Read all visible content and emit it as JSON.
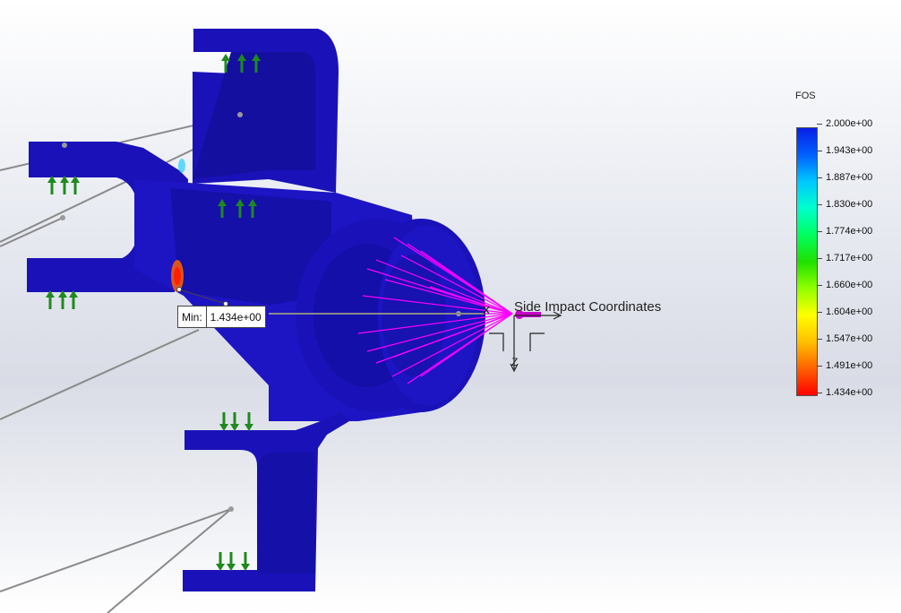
{
  "legend": {
    "title": "FOS",
    "labels": [
      "2.000e+00",
      "1.943e+00",
      "1.887e+00",
      "1.830e+00",
      "1.774e+00",
      "1.717e+00",
      "1.660e+00",
      "1.604e+00",
      "1.547e+00",
      "1.491e+00",
      "1.434e+00"
    ],
    "colors": [
      "#0a1ee6",
      "#0060ff",
      "#00c8ff",
      "#00ffcc",
      "#00ff60",
      "#20e000",
      "#90ff00",
      "#ffff00",
      "#ffc000",
      "#ff6000",
      "#ff0000"
    ]
  },
  "probe": {
    "label": "Min:",
    "value": "1.434e+00"
  },
  "coordinate_system": {
    "name": "Side Impact Coordinates",
    "axis_y": "Y",
    "axis_z": "Z",
    "axis_x": "X"
  },
  "colors": {
    "part_body": "#1a12b8",
    "part_shadow": "#0c0a7a",
    "restraint_arrow": "#1e8a1e",
    "force_lines": "#ff00ff",
    "connector": "#8a8a8a"
  }
}
